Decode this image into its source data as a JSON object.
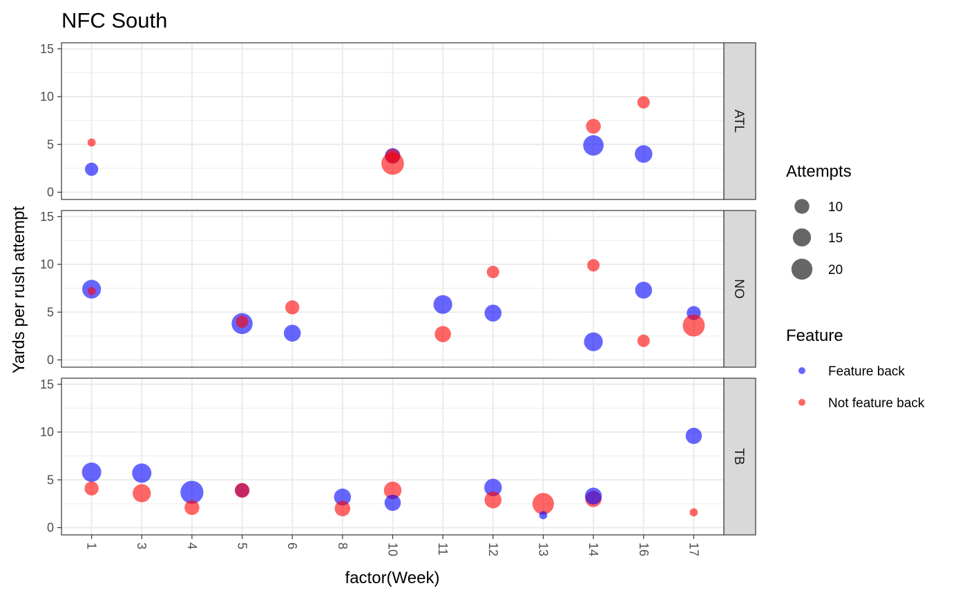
{
  "chart_data": {
    "type": "scatter",
    "title": "NFC South",
    "xlabel": "factor(Week)",
    "ylabel": "Yards per rush attempt",
    "categories": [
      "1",
      "3",
      "4",
      "5",
      "6",
      "8",
      "10",
      "11",
      "12",
      "13",
      "14",
      "16",
      "17"
    ],
    "y_ticks": [
      "0",
      "5",
      "10",
      "15"
    ],
    "ylim": [
      0,
      15.5
    ],
    "grid": true,
    "facets": [
      "ATL",
      "NO",
      "TB"
    ],
    "legend": {
      "placement": "right",
      "size_title": "Attempts",
      "size_entries": [
        {
          "label": "10",
          "value": 10
        },
        {
          "label": "15",
          "value": 15
        },
        {
          "label": "20",
          "value": 20
        }
      ],
      "color_title": "Feature",
      "color_entries": [
        {
          "label": "Feature back",
          "color": "#0000ff"
        },
        {
          "label": "Not feature back",
          "color": "#ff0000"
        }
      ]
    },
    "colors": {
      "Feature back": "#0000ff",
      "Not feature back": "#ff0000"
    },
    "points": [
      {
        "team": "ATL",
        "week": "1",
        "feature": "Feature back",
        "y": 2.4,
        "attempts": 8
      },
      {
        "team": "ATL",
        "week": "1",
        "feature": "Not feature back",
        "y": 5.2,
        "attempts": 3
      },
      {
        "team": "ATL",
        "week": "10",
        "feature": "Feature back",
        "y": 3.8,
        "attempts": 11
      },
      {
        "team": "ATL",
        "week": "10",
        "feature": "Not feature back",
        "y": 3.0,
        "attempts": 23
      },
      {
        "team": "ATL",
        "week": "10",
        "feature": "Not feature back",
        "y": 3.8,
        "attempts": 9
      },
      {
        "team": "ATL",
        "week": "14",
        "feature": "Not feature back",
        "y": 6.9,
        "attempts": 10
      },
      {
        "team": "ATL",
        "week": "14",
        "feature": "Feature back",
        "y": 4.9,
        "attempts": 19
      },
      {
        "team": "ATL",
        "week": "16",
        "feature": "Not feature back",
        "y": 9.4,
        "attempts": 7
      },
      {
        "team": "ATL",
        "week": "16",
        "feature": "Feature back",
        "y": 4.0,
        "attempts": 14
      },
      {
        "team": "NO",
        "week": "1",
        "feature": "Feature back",
        "y": 7.4,
        "attempts": 16
      },
      {
        "team": "NO",
        "week": "1",
        "feature": "Not feature back",
        "y": 7.2,
        "attempts": 3
      },
      {
        "team": "NO",
        "week": "5",
        "feature": "Feature back",
        "y": 3.8,
        "attempts": 20
      },
      {
        "team": "NO",
        "week": "5",
        "feature": "Not feature back",
        "y": 4.0,
        "attempts": 7
      },
      {
        "team": "NO",
        "week": "6",
        "feature": "Not feature back",
        "y": 5.5,
        "attempts": 9
      },
      {
        "team": "NO",
        "week": "6",
        "feature": "Feature back",
        "y": 2.8,
        "attempts": 13
      },
      {
        "team": "NO",
        "week": "11",
        "feature": "Feature back",
        "y": 5.8,
        "attempts": 16
      },
      {
        "team": "NO",
        "week": "11",
        "feature": "Not feature back",
        "y": 2.7,
        "attempts": 12
      },
      {
        "team": "NO",
        "week": "12",
        "feature": "Not feature back",
        "y": 9.2,
        "attempts": 7
      },
      {
        "team": "NO",
        "week": "12",
        "feature": "Feature back",
        "y": 4.9,
        "attempts": 13
      },
      {
        "team": "NO",
        "week": "14",
        "feature": "Not feature back",
        "y": 9.9,
        "attempts": 7
      },
      {
        "team": "NO",
        "week": "14",
        "feature": "Feature back",
        "y": 1.9,
        "attempts": 16
      },
      {
        "team": "NO",
        "week": "16",
        "feature": "Feature back",
        "y": 7.3,
        "attempts": 13
      },
      {
        "team": "NO",
        "week": "16",
        "feature": "Not feature back",
        "y": 2.0,
        "attempts": 7
      },
      {
        "team": "NO",
        "week": "17",
        "feature": "Feature back",
        "y": 4.9,
        "attempts": 9
      },
      {
        "team": "NO",
        "week": "17",
        "feature": "Not feature back",
        "y": 3.6,
        "attempts": 22
      },
      {
        "team": "TB",
        "week": "1",
        "feature": "Feature back",
        "y": 5.8,
        "attempts": 17
      },
      {
        "team": "TB",
        "week": "1",
        "feature": "Not feature back",
        "y": 4.1,
        "attempts": 9
      },
      {
        "team": "TB",
        "week": "3",
        "feature": "Feature back",
        "y": 5.7,
        "attempts": 17
      },
      {
        "team": "TB",
        "week": "3",
        "feature": "Not feature back",
        "y": 3.6,
        "attempts": 15
      },
      {
        "team": "TB",
        "week": "4",
        "feature": "Feature back",
        "y": 3.7,
        "attempts": 24
      },
      {
        "team": "TB",
        "week": "4",
        "feature": "Not feature back",
        "y": 2.1,
        "attempts": 10
      },
      {
        "team": "TB",
        "week": "5",
        "feature": "Feature back",
        "y": 3.9,
        "attempts": 9
      },
      {
        "team": "TB",
        "week": "5",
        "feature": "Not feature back",
        "y": 3.9,
        "attempts": 10
      },
      {
        "team": "TB",
        "week": "8",
        "feature": "Feature back",
        "y": 3.2,
        "attempts": 13
      },
      {
        "team": "TB",
        "week": "8",
        "feature": "Not feature back",
        "y": 2.0,
        "attempts": 11
      },
      {
        "team": "TB",
        "week": "10",
        "feature": "Not feature back",
        "y": 3.9,
        "attempts": 14
      },
      {
        "team": "TB",
        "week": "10",
        "feature": "Feature back",
        "y": 2.6,
        "attempts": 12
      },
      {
        "team": "TB",
        "week": "12",
        "feature": "Feature back",
        "y": 4.2,
        "attempts": 14
      },
      {
        "team": "TB",
        "week": "12",
        "feature": "Not feature back",
        "y": 2.9,
        "attempts": 13
      },
      {
        "team": "TB",
        "week": "13",
        "feature": "Not feature back",
        "y": 2.5,
        "attempts": 21
      },
      {
        "team": "TB",
        "week": "13",
        "feature": "Feature back",
        "y": 1.3,
        "attempts": 3
      },
      {
        "team": "TB",
        "week": "14",
        "feature": "Not feature back",
        "y": 3.0,
        "attempts": 12
      },
      {
        "team": "TB",
        "week": "14",
        "feature": "Feature back",
        "y": 3.3,
        "attempts": 13
      },
      {
        "team": "TB",
        "week": "17",
        "feature": "Feature back",
        "y": 9.6,
        "attempts": 12
      },
      {
        "team": "TB",
        "week": "17",
        "feature": "Not feature back",
        "y": 1.6,
        "attempts": 3
      }
    ]
  }
}
